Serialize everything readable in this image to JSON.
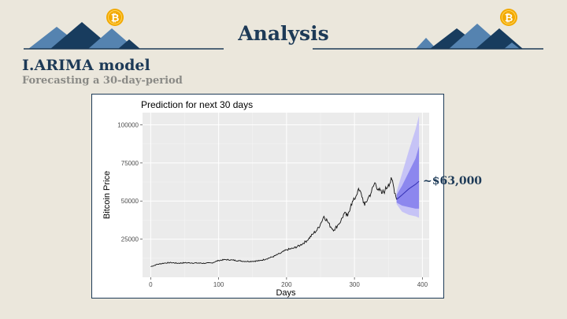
{
  "slide": {
    "title": "Analysis",
    "heading": "I.ARIMA model",
    "subheading": "Forecasting a 30-day-period",
    "annotation": "~$63,000",
    "coin_symbol": "₿",
    "colors": {
      "background": "#ebe7dc",
      "navy": "#1d3a57",
      "mountain_dark": "#183c5e",
      "mountain_light": "#5583b0",
      "coin": "#f2a900"
    }
  },
  "chart_data": {
    "type": "line",
    "title": "Prediction for next 30 days",
    "xlabel": "Days",
    "ylabel": "Bitcoin Price",
    "xlim": [
      -12,
      410
    ],
    "ylim": [
      0,
      108000
    ],
    "xticks": [
      0,
      100,
      200,
      300,
      400
    ],
    "yticks": [
      25000,
      50000,
      75000,
      100000
    ],
    "ytick_labels": [
      "25000",
      "50000",
      "75000",
      "100000"
    ],
    "grid": true,
    "history": {
      "x": [
        0,
        10,
        20,
        30,
        40,
        50,
        60,
        70,
        80,
        90,
        100,
        110,
        120,
        130,
        140,
        150,
        160,
        170,
        180,
        190,
        200,
        210,
        220,
        230,
        240,
        245,
        250,
        255,
        260,
        265,
        270,
        275,
        280,
        285,
        290,
        295,
        300,
        305,
        310,
        315,
        320,
        325,
        330,
        335,
        340,
        345,
        350,
        355,
        360,
        362
      ],
      "y": [
        7000,
        8500,
        9300,
        9600,
        9200,
        9500,
        9400,
        9300,
        9200,
        9400,
        11000,
        11600,
        11300,
        10800,
        10400,
        10500,
        10800,
        12000,
        13500,
        15500,
        18000,
        19000,
        21000,
        24000,
        29000,
        31000,
        35000,
        40000,
        37000,
        33000,
        31000,
        34000,
        37000,
        42000,
        40000,
        48000,
        51000,
        57000,
        55000,
        47000,
        52000,
        56000,
        62000,
        58000,
        55000,
        57000,
        61000,
        64000,
        55000,
        51000
      ]
    },
    "forecast": {
      "x": [
        362,
        370,
        380,
        390,
        395
      ],
      "mean": [
        51000,
        54000,
        58000,
        61000,
        63000
      ],
      "lower80": [
        49000,
        47000,
        46000,
        45000,
        45000
      ],
      "upper80": [
        54000,
        60000,
        69000,
        78000,
        86000
      ],
      "lower95": [
        48000,
        43000,
        41000,
        40000,
        39000
      ],
      "upper95": [
        56000,
        68000,
        83000,
        97000,
        106000
      ]
    }
  }
}
